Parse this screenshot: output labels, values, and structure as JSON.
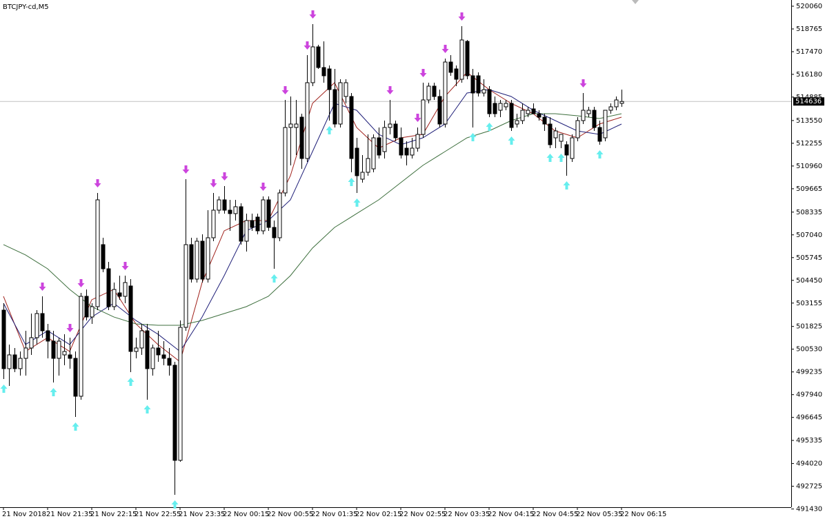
{
  "chart_data": {
    "type": "candlestick",
    "title": "BTCJPY-cd,M5",
    "categories": [
      "21 Nov 2018",
      null,
      null,
      null,
      null,
      null,
      null,
      null,
      "21 Nov 21:35",
      null,
      null,
      null,
      null,
      null,
      null,
      null,
      "21 Nov 22:15",
      null,
      null,
      null,
      null,
      null,
      null,
      null,
      "21 Nov 22:55",
      null,
      null,
      null,
      null,
      null,
      null,
      null,
      "21 Nov 23:35",
      null,
      null,
      null,
      null,
      null,
      null,
      null,
      "22 Nov 00:15",
      null,
      null,
      null,
      null,
      null,
      null,
      null,
      "22 Nov 00:55",
      null,
      null,
      null,
      null,
      null,
      null,
      null,
      "22 Nov 01:35",
      null,
      null,
      null,
      null,
      null,
      null,
      null,
      "22 Nov 02:15",
      null,
      null,
      null,
      null,
      null,
      null,
      null,
      "22 Nov 02:55",
      null,
      null,
      null,
      null,
      null,
      null,
      null,
      "22 Nov 03:35",
      null,
      null,
      null,
      null,
      null,
      null,
      null,
      "22 Nov 04:15",
      null,
      null,
      null,
      null,
      null,
      null,
      null,
      "22 Nov 04:55",
      null,
      null,
      null,
      null,
      null,
      null,
      null,
      "22 Nov 05:35",
      null,
      null,
      null,
      null,
      null,
      null,
      null,
      "22 Nov 06:15"
    ],
    "open": [
      502755,
      499420,
      500205,
      499420,
      500008,
      500597,
      501185,
      502559,
      501578,
      500989,
      500008,
      500205,
      500205,
      500008,
      497850,
      503540,
      502363,
      502951,
      506483,
      505109,
      502951,
      503736,
      503540,
      504129,
      500401,
      500597,
      501578,
      499420,
      500597,
      500205,
      500008,
      499616,
      494200,
      501774,
      506483,
      504521,
      506679,
      504521,
      506875,
      508445,
      509033,
      508445,
      508249,
      508641,
      506679,
      507856,
      508052,
      507268,
      509033,
      507464,
      506875,
      509426,
      513154,
      513154,
      513742,
      511388,
      515704,
      517745,
      516568,
      516489,
      515312,
      513350,
      514919,
      514919,
      511976,
      510211,
      510603,
      510799,
      512565,
      511780,
      513154,
      513350,
      512565,
      511976,
      511584,
      511976,
      512761,
      514723,
      515508,
      514919,
      513350,
      516881,
      516489,
      515900,
      518059,
      516097,
      516097,
      515116,
      515312,
      514527,
      514135,
      514331,
      514527,
      513350,
      513546,
      513938,
      514213,
      513938,
      513742,
      513350,
      512565,
      512369,
      512173,
      511388,
      512565,
      513546,
      513938,
      514135,
      513154,
      512565,
      514135,
      514331,
      514527
    ],
    "high": [
      503147,
      500793,
      500597,
      500401,
      501578,
      502559,
      502755,
      503540,
      501970,
      501578,
      501185,
      501382,
      501185,
      500401,
      503736,
      503932,
      503147,
      509426,
      506875,
      505502,
      504325,
      504717,
      504717,
      504521,
      501185,
      501970,
      501970,
      500793,
      501578,
      500989,
      500597,
      499812,
      502166,
      510211,
      506875,
      506875,
      507072,
      508445,
      509426,
      509229,
      509818,
      509033,
      509033,
      508837,
      508249,
      508249,
      508249,
      509229,
      509229,
      507856,
      509622,
      514723,
      514919,
      514723,
      513938,
      517274,
      519040,
      517862,
      518059,
      516685,
      516489,
      515900,
      515900,
      515116,
      512565,
      511584,
      512761,
      512761,
      513154,
      513546,
      514723,
      513546,
      513154,
      512369,
      512565,
      513154,
      515704,
      515704,
      515704,
      515312,
      517078,
      517274,
      516685,
      518922,
      518137,
      516489,
      516293,
      515900,
      515508,
      514919,
      514723,
      514723,
      514723,
      513938,
      514527,
      514331,
      514527,
      514135,
      513938,
      513742,
      513154,
      512761,
      512369,
      512761,
      513742,
      515116,
      514331,
      514331,
      513546,
      514135,
      514527,
      514919,
      515312
    ],
    "low": [
      498831,
      498439,
      499224,
      499027,
      499027,
      500205,
      500793,
      501185,
      500008,
      498635,
      499027,
      499616,
      499420,
      496673,
      497653,
      502166,
      501970,
      502755,
      504913,
      502755,
      502755,
      503344,
      503147,
      499224,
      500008,
      500205,
      497653,
      499027,
      499812,
      499616,
      499027,
      492239,
      494122,
      501578,
      504325,
      504325,
      504325,
      504325,
      506679,
      508249,
      508249,
      507268,
      507856,
      506483,
      506091,
      507268,
      507072,
      507072,
      507268,
      505109,
      506679,
      509229,
      510995,
      511584,
      510799,
      511192,
      515508,
      516489,
      515704,
      513546,
      513154,
      513154,
      514527,
      510603,
      509426,
      510014,
      510407,
      510603,
      511388,
      511388,
      512761,
      512369,
      511388,
      510995,
      511388,
      511780,
      512565,
      514527,
      514723,
      513154,
      513154,
      516097,
      515508,
      515704,
      515900,
      513154,
      514919,
      514919,
      513742,
      513742,
      513742,
      514135,
      512957,
      513154,
      513350,
      513742,
      513938,
      513546,
      512957,
      511976,
      511976,
      511976,
      510407,
      511192,
      512369,
      513350,
      513742,
      512957,
      512173,
      512369,
      513938,
      514135,
      514331
    ],
    "close": [
      499420,
      500205,
      499420,
      500008,
      500597,
      501185,
      502559,
      501578,
      500989,
      500008,
      500989,
      500401,
      500008,
      497850,
      503540,
      502363,
      502951,
      509033,
      505109,
      502951,
      503932,
      503540,
      504325,
      500401,
      500597,
      501578,
      499420,
      500597,
      500205,
      500008,
      499616,
      494200,
      501774,
      506483,
      504521,
      506679,
      504521,
      506875,
      508445,
      509033,
      508445,
      508249,
      508641,
      506679,
      507856,
      507464,
      507268,
      509033,
      507464,
      506875,
      509426,
      513154,
      513350,
      513350,
      511388,
      515704,
      517745,
      516568,
      516097,
      515312,
      513350,
      515704,
      515704,
      511388,
      510407,
      510603,
      511388,
      512565,
      511584,
      513154,
      513350,
      512565,
      511584,
      511584,
      511976,
      512761,
      514723,
      515508,
      514919,
      513350,
      516881,
      516293,
      515900,
      518137,
      516097,
      515116,
      515116,
      515312,
      513938,
      513938,
      514527,
      514527,
      513154,
      513546,
      514135,
      514135,
      513938,
      513742,
      513350,
      512173,
      512957,
      512761,
      511584,
      512565,
      513546,
      514135,
      514135,
      513154,
      512369,
      514135,
      514331,
      514723,
      514636
    ],
    "overlay_x": [
      0,
      4,
      8,
      12,
      16,
      20,
      24,
      28,
      32,
      36,
      40,
      44,
      48,
      52,
      56,
      60,
      64,
      68,
      72,
      76,
      80,
      84,
      88,
      92,
      96,
      100,
      104,
      108,
      112
    ],
    "overlays": [
      {
        "color": "#a0201a",
        "values": [
          503540,
          500401,
          501185,
          500401,
          503344,
          503932,
          501970,
          500793,
          499812,
          504325,
          507268,
          507856,
          507856,
          510407,
          514527,
          515704,
          513154,
          511976,
          512565,
          512761,
          514919,
          516293,
          515312,
          514527,
          513938,
          512957,
          512565,
          513350,
          513742
        ]
      },
      {
        "color": "#1e1e78",
        "values": [
          503147,
          500793,
          501578,
          500793,
          502363,
          503147,
          502166,
          501382,
          500401,
          502363,
          504717,
          507268,
          507856,
          509033,
          511780,
          514527,
          514135,
          512761,
          512173,
          512565,
          513350,
          515116,
          515312,
          514919,
          514135,
          513546,
          512957,
          512761,
          513350
        ]
      },
      {
        "color": "#3c6e3c",
        "values": [
          506483,
          505894,
          505109,
          503932,
          502951,
          502363,
          501970,
          501892,
          501892,
          502166,
          502559,
          502951,
          503540,
          504717,
          506287,
          507464,
          508249,
          509033,
          510014,
          510995,
          511780,
          512565,
          512957,
          513546,
          513938,
          513938,
          513821,
          513664,
          513938
        ]
      }
    ],
    "down_signals": [
      7,
      12,
      14,
      17,
      22,
      33,
      38,
      40,
      47,
      51,
      55,
      56,
      70,
      75,
      76,
      80,
      83,
      105
    ],
    "up_signals": [
      0,
      9,
      13,
      23,
      26,
      31,
      49,
      59,
      63,
      64,
      85,
      88,
      92,
      99,
      101,
      102,
      108
    ],
    "last_price": 514636,
    "ylim": [
      491570,
      520413
    ],
    "yticks": [
      520060,
      518765,
      517470,
      516180,
      514885,
      513550,
      512255,
      510960,
      509665,
      508335,
      507040,
      505745,
      504450,
      503155,
      501825,
      500530,
      499235,
      497940,
      496645,
      495335,
      494020,
      492725,
      491430
    ]
  }
}
